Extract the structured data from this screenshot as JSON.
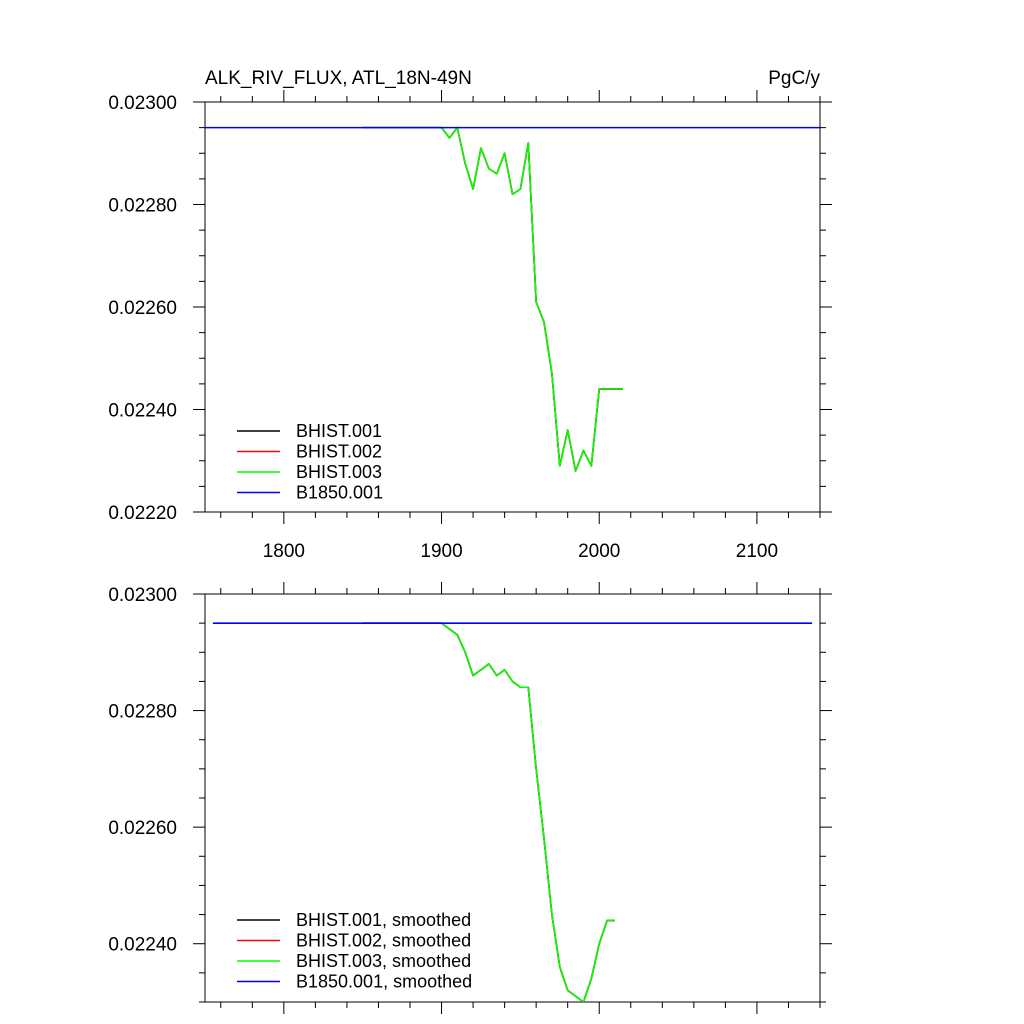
{
  "chart_data": [
    {
      "type": "line",
      "title": "ALK_RIV_FLUX, ATL_18N-49N",
      "units": "PgC/y",
      "xlim": [
        1750,
        2140
      ],
      "ylim": [
        0.0222,
        0.023
      ],
      "x_ticks": [
        1800,
        1900,
        2000,
        2100
      ],
      "x_tick_labels": [
        "1800",
        "1900",
        "2000",
        "2100"
      ],
      "y_ticks": [
        0.0222,
        0.0224,
        0.0226,
        0.0228,
        0.023
      ],
      "y_tick_labels": [
        "0.02220",
        "0.02240",
        "0.02260",
        "0.02280",
        "0.02300"
      ],
      "legend_position": "bottom-left",
      "series": [
        {
          "name": "BHIST.001",
          "color": "#000000",
          "x": [
            1850,
            1900,
            1905,
            1910,
            1915,
            1920,
            1925,
            1930,
            1935,
            1940,
            1945,
            1950,
            1955,
            1960,
            1965,
            1970,
            1975,
            1980,
            1985,
            1990,
            1995,
            2000,
            2005,
            2010,
            2015
          ],
          "y": [
            0.02295,
            0.02295,
            0.02293,
            0.02295,
            0.02288,
            0.02283,
            0.02291,
            0.02287,
            0.02286,
            0.0229,
            0.02282,
            0.02283,
            0.02292,
            0.02261,
            0.02257,
            0.02247,
            0.02229,
            0.02236,
            0.02228,
            0.02232,
            0.02229,
            0.02244,
            0.02244,
            0.02244,
            0.02244
          ]
        },
        {
          "name": "BHIST.002",
          "color": "#ff0000",
          "x": [
            1850,
            1900,
            1905,
            1910,
            1915,
            1920,
            1925,
            1930,
            1935,
            1940,
            1945,
            1950,
            1955,
            1960,
            1965,
            1970,
            1975,
            1980,
            1985,
            1990,
            1995,
            2000,
            2005,
            2010,
            2015
          ],
          "y": [
            0.02295,
            0.02295,
            0.02293,
            0.02295,
            0.02288,
            0.02283,
            0.02291,
            0.02287,
            0.02286,
            0.0229,
            0.02282,
            0.02283,
            0.02292,
            0.02261,
            0.02257,
            0.02247,
            0.02229,
            0.02236,
            0.02228,
            0.02232,
            0.02229,
            0.02244,
            0.02244,
            0.02244,
            0.02244
          ]
        },
        {
          "name": "BHIST.003",
          "color": "#00ff00",
          "x": [
            1850,
            1900,
            1905,
            1910,
            1915,
            1920,
            1925,
            1930,
            1935,
            1940,
            1945,
            1950,
            1955,
            1960,
            1965,
            1970,
            1975,
            1980,
            1985,
            1990,
            1995,
            2000,
            2005,
            2010,
            2015
          ],
          "y": [
            0.02295,
            0.02295,
            0.02293,
            0.02295,
            0.02288,
            0.02283,
            0.02291,
            0.02287,
            0.02286,
            0.0229,
            0.02282,
            0.02283,
            0.02292,
            0.02261,
            0.02257,
            0.02247,
            0.02229,
            0.02236,
            0.02228,
            0.02232,
            0.02229,
            0.02244,
            0.02244,
            0.02244,
            0.02244
          ]
        },
        {
          "name": "B1850.001",
          "color": "#0000ff",
          "x": [
            1750,
            2140
          ],
          "y": [
            0.02295,
            0.02295
          ]
        }
      ]
    },
    {
      "type": "line",
      "xlim": [
        1750,
        2140
      ],
      "ylim": [
        0.0223,
        0.023
      ],
      "x_ticks": [
        1800,
        1900,
        2000,
        2100
      ],
      "y_ticks": [
        0.0224,
        0.0226,
        0.0228,
        0.023
      ],
      "y_tick_labels": [
        "0.02240",
        "0.02260",
        "0.02280",
        "0.02300"
      ],
      "legend_position": "bottom-left",
      "series": [
        {
          "name": "BHIST.001, smoothed",
          "color": "#000000",
          "x": [
            1850,
            1900,
            1905,
            1910,
            1915,
            1920,
            1925,
            1930,
            1935,
            1940,
            1945,
            1950,
            1955,
            1960,
            1965,
            1970,
            1975,
            1980,
            1985,
            1990,
            1995,
            2000,
            2005,
            2010
          ],
          "y": [
            0.02295,
            0.02295,
            0.02294,
            0.02293,
            0.0229,
            0.02286,
            0.02287,
            0.02288,
            0.02286,
            0.02287,
            0.02285,
            0.02284,
            0.02284,
            0.0227,
            0.02258,
            0.02245,
            0.02236,
            0.02232,
            0.02231,
            0.0223,
            0.02234,
            0.0224,
            0.02244,
            0.02244
          ]
        },
        {
          "name": "BHIST.002, smoothed",
          "color": "#ff0000",
          "x": [
            1850,
            1900,
            1905,
            1910,
            1915,
            1920,
            1925,
            1930,
            1935,
            1940,
            1945,
            1950,
            1955,
            1960,
            1965,
            1970,
            1975,
            1980,
            1985,
            1990,
            1995,
            2000,
            2005,
            2010
          ],
          "y": [
            0.02295,
            0.02295,
            0.02294,
            0.02293,
            0.0229,
            0.02286,
            0.02287,
            0.02288,
            0.02286,
            0.02287,
            0.02285,
            0.02284,
            0.02284,
            0.0227,
            0.02258,
            0.02245,
            0.02236,
            0.02232,
            0.02231,
            0.0223,
            0.02234,
            0.0224,
            0.02244,
            0.02244
          ]
        },
        {
          "name": "BHIST.003, smoothed",
          "color": "#00ff00",
          "x": [
            1850,
            1900,
            1905,
            1910,
            1915,
            1920,
            1925,
            1930,
            1935,
            1940,
            1945,
            1950,
            1955,
            1960,
            1965,
            1970,
            1975,
            1980,
            1985,
            1990,
            1995,
            2000,
            2005,
            2010
          ],
          "y": [
            0.02295,
            0.02295,
            0.02294,
            0.02293,
            0.0229,
            0.02286,
            0.02287,
            0.02288,
            0.02286,
            0.02287,
            0.02285,
            0.02284,
            0.02284,
            0.0227,
            0.02258,
            0.02245,
            0.02236,
            0.02232,
            0.02231,
            0.0223,
            0.02234,
            0.0224,
            0.02244,
            0.02244
          ]
        },
        {
          "name": "B1850.001, smoothed",
          "color": "#0000ff",
          "x": [
            1755,
            2135
          ],
          "y": [
            0.02295,
            0.02295
          ]
        }
      ]
    }
  ]
}
